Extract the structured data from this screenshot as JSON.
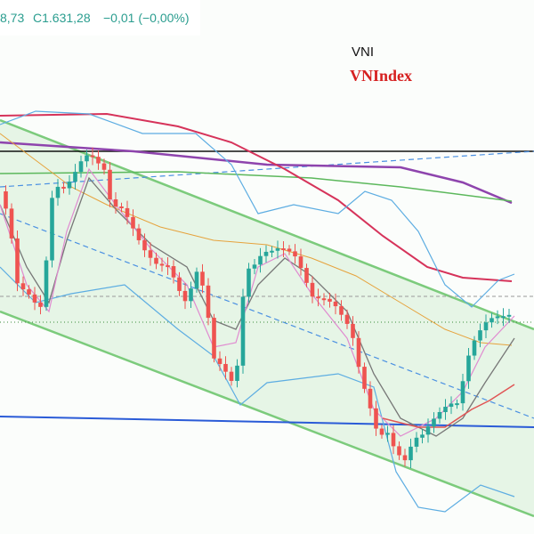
{
  "header": {
    "open_partial": "8,73",
    "close": "C1.631,28",
    "change": "−0,01 (−0,00%)"
  },
  "legend": {
    "symbol": "VNI",
    "name": "VNIndex"
  }
}
